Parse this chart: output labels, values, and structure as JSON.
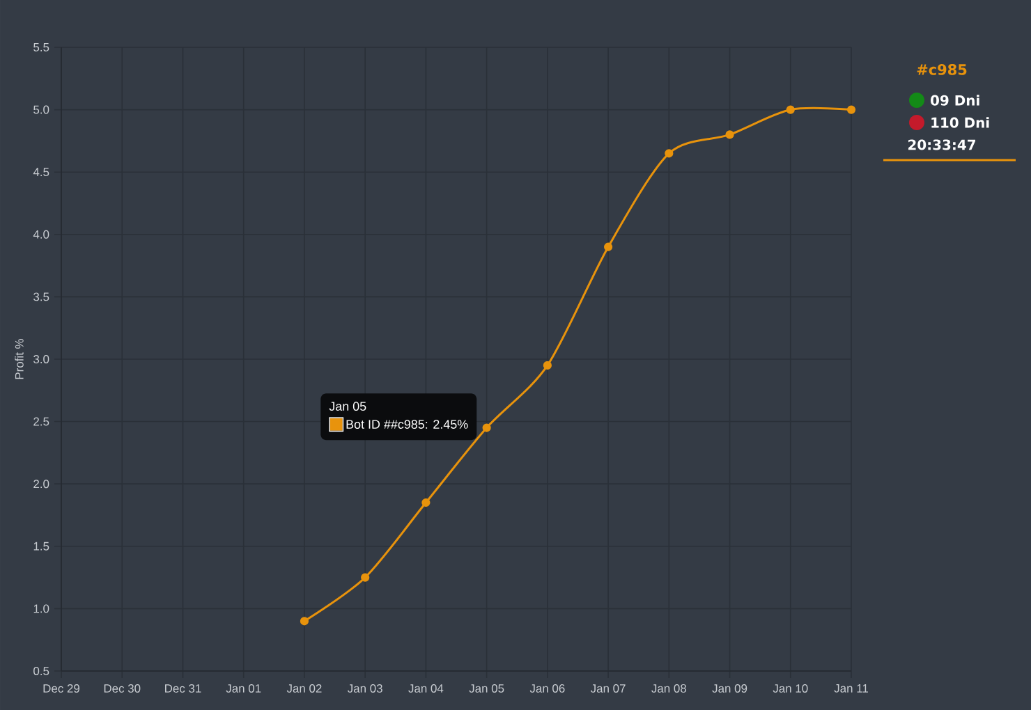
{
  "chart_data": {
    "type": "line",
    "ylabel": "Profit %",
    "categories": [
      "Dec 29",
      "Dec 30",
      "Dec 31",
      "Jan 01",
      "Jan 02",
      "Jan 03",
      "Jan 04",
      "Jan 05",
      "Jan 06",
      "Jan 07",
      "Jan 08",
      "Jan 09",
      "Jan 10",
      "Jan 11"
    ],
    "series": [
      {
        "name": "#c985",
        "color": "#e8930c",
        "values": [
          null,
          null,
          null,
          null,
          0.9,
          1.25,
          1.85,
          2.45,
          2.95,
          3.9,
          4.65,
          4.8,
          5.0,
          5.0
        ]
      }
    ],
    "ylim": [
      0.5,
      5.5
    ],
    "yticks": [
      0.5,
      {
        "value": 1,
        "label": "1.0"
      },
      1.5,
      {
        "value": 2,
        "label": "2.0"
      },
      2.5,
      {
        "value": 3,
        "label": "3.0"
      },
      3.5,
      {
        "value": 4,
        "label": "4.0"
      },
      4.5,
      {
        "value": 5,
        "label": "5.0"
      },
      5.5
    ],
    "grid": true,
    "legend": "top right",
    "marker": "circle",
    "line_style": "solid",
    "annotations": [
      "Jan 05",
      {
        "text": "Bot ID ##c985: 2.45%",
        "x": "Jan 05",
        "y": 2.45
      },
      "09 Dni",
      "110 Dni",
      "20:33:47"
    ]
  }
}
